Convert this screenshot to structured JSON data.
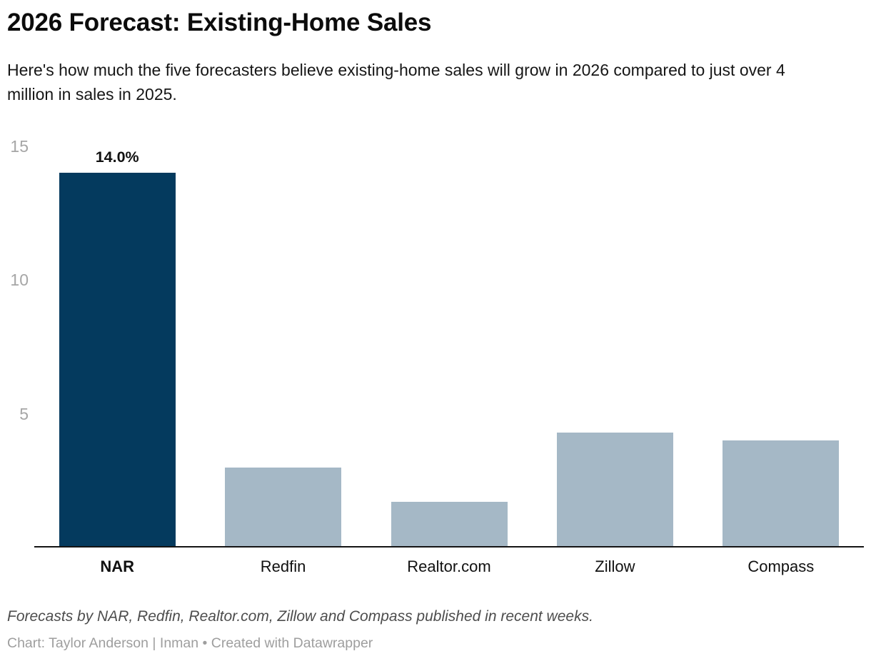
{
  "header": {
    "title": "2026 Forecast: Existing-Home Sales",
    "subtitle": "Here's how much the five forecasters believe existing-home sales will grow in 2026 compared to just over 4 million in sales in 2025."
  },
  "chart_data": {
    "type": "bar",
    "title": "2026 Forecast: Existing-Home Sales",
    "categories": [
      "NAR",
      "Redfin",
      "Realtor.com",
      "Zillow",
      "Compass"
    ],
    "values": [
      14.0,
      3.0,
      1.7,
      4.3,
      4.0
    ],
    "unit": "%",
    "data_labels": [
      "14.0%",
      "",
      "",
      "",
      ""
    ],
    "highlight_index": 0,
    "xlabel": "",
    "ylabel": "",
    "yticks": [
      5,
      10,
      15
    ],
    "ylim": [
      0,
      15.4
    ],
    "grid": "off",
    "legend": "none",
    "colors": {
      "highlight_bar": "#043a5e",
      "default_bar": "#a5b8c6",
      "axis_line": "#141414",
      "tick_label": "#a6a6a6",
      "value_label": "#111111"
    }
  },
  "footer": {
    "note": "Forecasts by NAR, Redfin, Realtor.com, Zillow and Compass published in recent weeks.",
    "credit": "Chart: Taylor Anderson | Inman • Created with Datawrapper"
  }
}
